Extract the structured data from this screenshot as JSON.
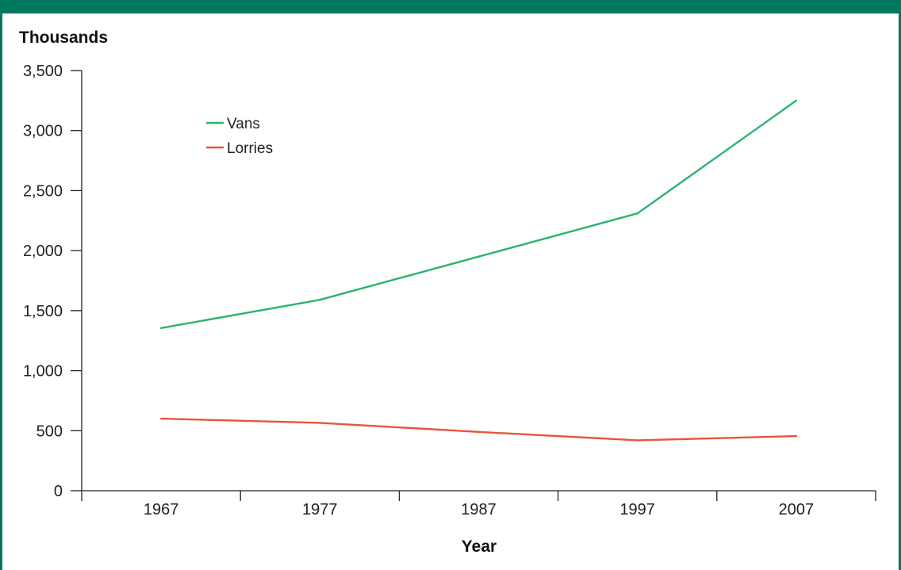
{
  "chart_data": {
    "type": "line",
    "ylabel": "Thousands",
    "xlabel": "Year",
    "categories": [
      "1967",
      "1977",
      "1987",
      "1997",
      "2007"
    ],
    "ylim": [
      0,
      3500
    ],
    "yticks": [
      "0",
      "500",
      "1,000",
      "1,500",
      "2,000",
      "2,500",
      "3,000",
      "3,500"
    ],
    "legend_position": "top-left",
    "grid": false,
    "series": [
      {
        "name": "Vans",
        "color": "#2cb36f",
        "values": [
          1355,
          1590,
          1950,
          2310,
          3250
        ]
      },
      {
        "name": "Lorries",
        "color": "#e8553d",
        "values": [
          600,
          565,
          490,
          420,
          455
        ]
      }
    ]
  },
  "colors": {
    "frame": "#007a5e"
  }
}
